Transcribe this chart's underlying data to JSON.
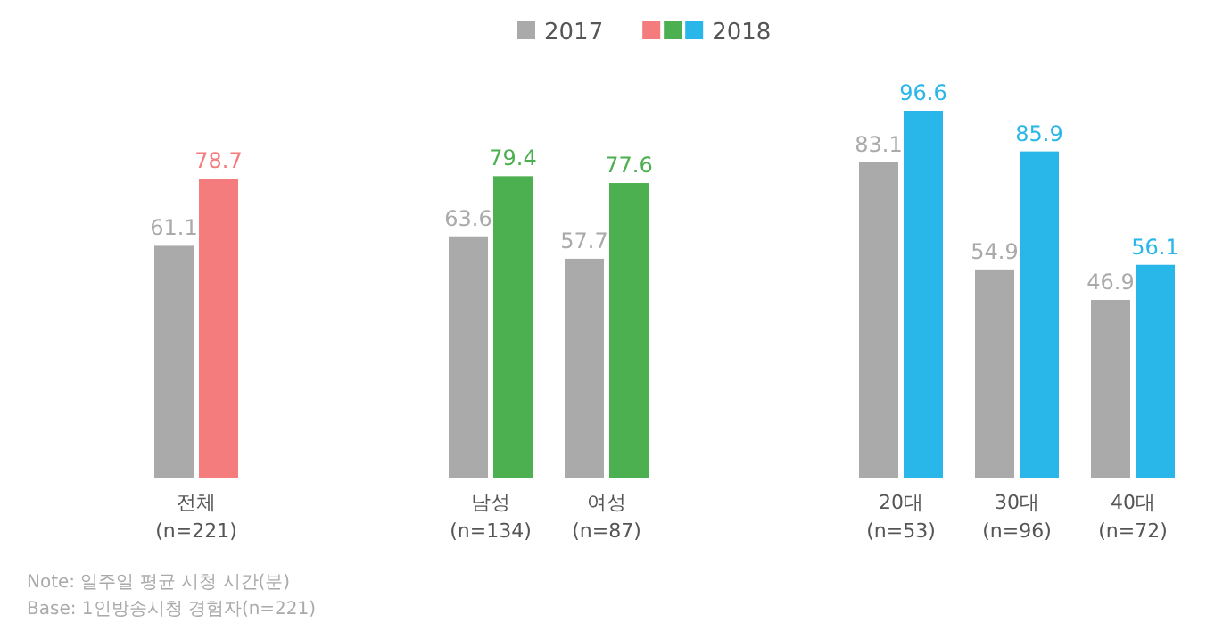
{
  "chart_data": {
    "type": "bar",
    "categories": [
      "전체 (n=221)",
      "남성 (n=134)",
      "여성 (n=87)",
      "20대 (n=53)",
      "30대 (n=96)",
      "40대 (n=72)"
    ],
    "series": [
      {
        "name": "2017",
        "color": "#aaaaaa",
        "values": [
          61.1,
          63.6,
          57.7,
          83.1,
          54.9,
          46.9
        ]
      },
      {
        "name": "2018",
        "colors": [
          "#f47c7c",
          "#4caf50",
          "#4caf50",
          "#29b6e8",
          "#29b6e8",
          "#29b6e8"
        ],
        "values": [
          78.7,
          79.4,
          77.6,
          96.6,
          85.9,
          56.1
        ]
      }
    ],
    "data_labels": true,
    "legend": "top",
    "annotations": [
      "Note: 일주일 평균 시청 시간(분)",
      "Base: 1인방송시청 경험자(n=221)"
    ]
  }
}
